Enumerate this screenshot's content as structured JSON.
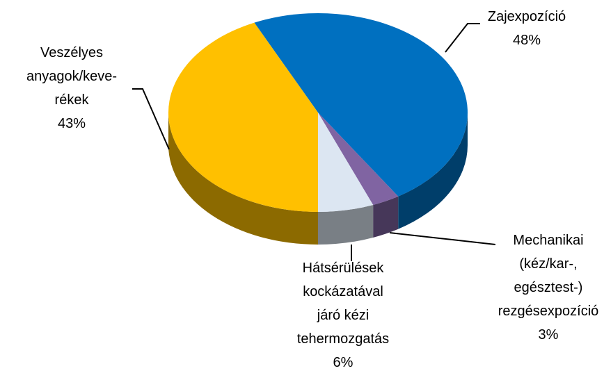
{
  "chart_data": {
    "type": "pie",
    "categories": [
      "Zajexpozíció",
      "Mechanikai\n(kéz/kar-,\negésztest-)\nrezgésexpozíció",
      "Hátsérülések\nkockázatával\njáró kézi\ntehermozgatás",
      "Veszélyes\nanyagok/keve-\nrékek"
    ],
    "values": [
      48,
      3,
      6,
      43
    ],
    "value_labels": [
      "48%",
      "3%",
      "6%",
      "43%"
    ],
    "colors": [
      "#0070c0",
      "#8064a2",
      "#dce6f2",
      "#ffc000"
    ]
  }
}
